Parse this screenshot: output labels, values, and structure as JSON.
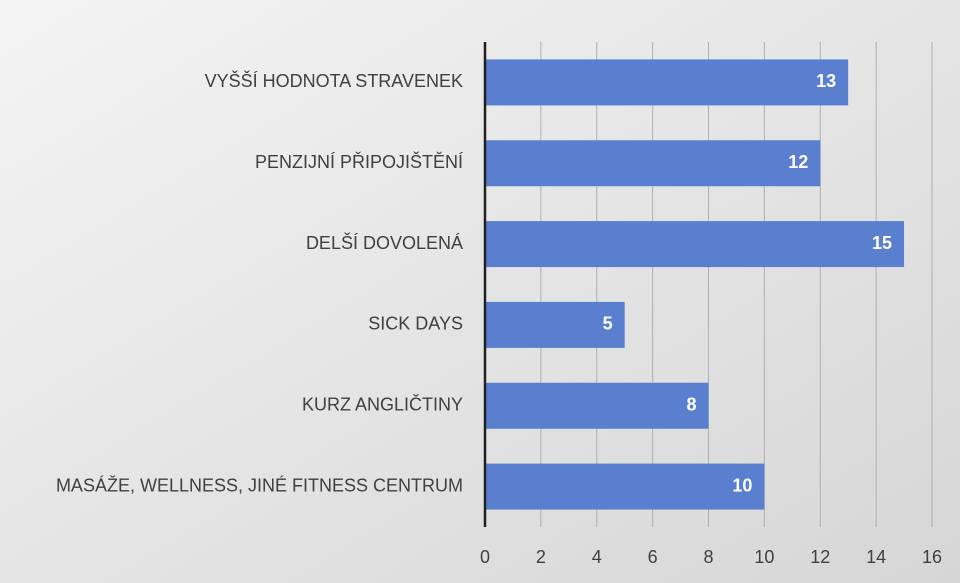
{
  "chart_data": {
    "type": "hbar",
    "categories": [
      "VYŠŠÍ HODNOTA STRAVENEK",
      "PENZIJNÍ PŘIPOJIŠTĚNÍ",
      "DELŠÍ DOVOLENÁ",
      "SICK DAYS",
      "KURZ ANGLIČTINY",
      "MASÁŽE, WELLNESS, JINÉ FITNESS CENTRUM"
    ],
    "values": [
      13,
      12,
      15,
      5,
      8,
      10
    ],
    "color": "#5a7fcf",
    "xlim": [
      0,
      16
    ],
    "xticks": [
      0,
      2,
      4,
      6,
      8,
      10,
      12,
      14,
      16
    ],
    "grid": true
  }
}
